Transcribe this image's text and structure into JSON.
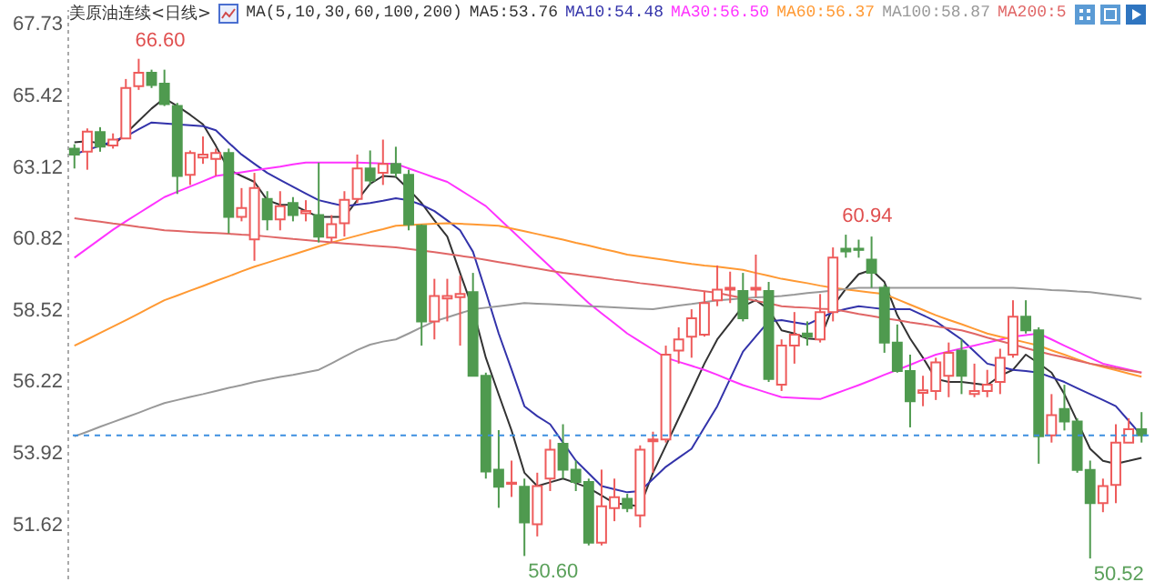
{
  "chart_data": {
    "type": "candlestick",
    "title": "美原油连续<日线>",
    "legend_title": "MA(5,10,30,60,100,200)",
    "legend": "top",
    "tick_labels": "y",
    "categories": [
      null,
      null,
      null,
      null,
      null,
      null,
      null,
      null,
      null,
      null,
      null,
      null,
      null,
      null,
      null,
      null,
      null,
      null,
      null,
      null,
      null,
      null,
      null,
      null,
      null,
      null,
      null,
      null,
      null,
      null,
      null,
      null,
      null,
      null,
      null,
      null,
      null,
      null,
      null,
      null,
      null,
      null,
      null,
      null,
      null,
      null,
      null,
      null,
      null,
      null,
      null,
      null,
      null,
      null,
      null,
      null,
      null,
      null,
      null,
      null,
      null,
      null,
      null,
      null,
      null,
      null,
      null,
      null,
      null,
      null,
      null,
      null,
      null,
      null,
      null,
      null,
      null,
      null,
      null,
      null,
      null,
      null,
      null,
      null
    ],
    "ylim": [
      49.88,
      68.2
    ],
    "yticks": [
      67.73,
      65.42,
      63.12,
      60.82,
      58.52,
      56.22,
      53.92,
      51.62
    ],
    "ohlc": [
      [
        63.71,
        63.85,
        63.07,
        63.52
      ],
      [
        63.61,
        64.36,
        63.03,
        64.26
      ],
      [
        64.24,
        64.4,
        63.61,
        63.77
      ],
      [
        63.81,
        64.2,
        63.71,
        64.0
      ],
      [
        64.04,
        65.95,
        64.04,
        65.66
      ],
      [
        65.72,
        66.6,
        65.6,
        66.15
      ],
      [
        66.15,
        66.25,
        65.66,
        65.76
      ],
      [
        65.8,
        66.25,
        65.08,
        65.14
      ],
      [
        65.08,
        65.18,
        62.25,
        62.83
      ],
      [
        62.87,
        63.65,
        62.54,
        63.57
      ],
      [
        63.42,
        64.1,
        63.22,
        63.52
      ],
      [
        63.38,
        63.71,
        62.83,
        63.57
      ],
      [
        63.57,
        63.71,
        60.98,
        61.51
      ],
      [
        61.51,
        62.44,
        61.37,
        61.8
      ],
      [
        60.79,
        62.93,
        60.1,
        62.44
      ],
      [
        62.09,
        62.34,
        61.08,
        61.43
      ],
      [
        61.43,
        62.34,
        61.08,
        61.86
      ],
      [
        61.96,
        62.15,
        61.37,
        61.57
      ],
      [
        61.63,
        62.05,
        61.37,
        61.7
      ],
      [
        61.57,
        63.26,
        60.69,
        60.88
      ],
      [
        60.85,
        61.57,
        60.69,
        61.28
      ],
      [
        61.31,
        62.34,
        60.88,
        62.06
      ],
      [
        62.09,
        63.52,
        61.96,
        63.07
      ],
      [
        63.07,
        63.65,
        62.54,
        62.68
      ],
      [
        62.93,
        64.0,
        62.54,
        63.22
      ],
      [
        63.22,
        63.77,
        62.8,
        62.93
      ],
      [
        62.87,
        63.03,
        61.08,
        61.27
      ],
      [
        61.23,
        61.27,
        57.37,
        58.15
      ],
      [
        58.15,
        59.52,
        57.57,
        58.97
      ],
      [
        58.89,
        59.52,
        58.15,
        58.97
      ],
      [
        58.93,
        59.62,
        57.37,
        59.03
      ],
      [
        59.09,
        59.71,
        56.4,
        56.4
      ],
      [
        56.4,
        56.5,
        53.09,
        53.32
      ],
      [
        53.38,
        54.65,
        52.15,
        52.83
      ],
      [
        52.92,
        53.67,
        52.5,
        52.96
      ],
      [
        52.83,
        53.09,
        50.6,
        51.68
      ],
      [
        51.62,
        53.28,
        51.23,
        52.85
      ],
      [
        53.09,
        54.35,
        52.69,
        54.02
      ],
      [
        54.21,
        54.84,
        53.09,
        53.38
      ],
      [
        53.38,
        53.67,
        52.69,
        52.98
      ],
      [
        52.98,
        53.09,
        50.94,
        51.03
      ],
      [
        51.03,
        53.38,
        50.94,
        52.2
      ],
      [
        52.14,
        53.09,
        51.72,
        52.49
      ],
      [
        52.44,
        52.6,
        52.01,
        52.14
      ],
      [
        51.91,
        54.16,
        51.52,
        54.02
      ],
      [
        54.29,
        54.6,
        53.28,
        54.35
      ],
      [
        54.35,
        57.37,
        54.25,
        57.08
      ],
      [
        57.21,
        57.96,
        56.79,
        57.57
      ],
      [
        57.66,
        58.54,
        56.98,
        58.25
      ],
      [
        57.72,
        59.13,
        57.66,
        58.74
      ],
      [
        58.83,
        59.95,
        58.64,
        59.17
      ],
      [
        59.17,
        59.75,
        58.74,
        59.23
      ],
      [
        59.13,
        59.71,
        58.15,
        58.25
      ],
      [
        59.17,
        60.3,
        58.93,
        59.23
      ],
      [
        59.13,
        59.42,
        56.2,
        56.3
      ],
      [
        56.11,
        57.57,
        55.91,
        57.37
      ],
      [
        57.37,
        58.45,
        56.79,
        57.72
      ],
      [
        57.76,
        58.15,
        57.37,
        57.66
      ],
      [
        57.57,
        59.03,
        57.47,
        58.45
      ],
      [
        58.45,
        60.53,
        58.15,
        60.2
      ],
      [
        60.49,
        60.94,
        60.2,
        60.4
      ],
      [
        60.49,
        60.78,
        60.2,
        60.45
      ],
      [
        60.14,
        60.88,
        59.23,
        59.71
      ],
      [
        59.23,
        59.33,
        57.14,
        57.47
      ],
      [
        57.47,
        58.05,
        56.5,
        56.55
      ],
      [
        56.55,
        57.08,
        54.74,
        55.58
      ],
      [
        55.85,
        56.4,
        55.42,
        55.93
      ],
      [
        55.91,
        56.98,
        55.62,
        56.83
      ],
      [
        56.4,
        57.47,
        55.71,
        57.14
      ],
      [
        57.21,
        57.57,
        55.81,
        56.4
      ],
      [
        55.81,
        56.79,
        55.71,
        55.91
      ],
      [
        55.91,
        56.59,
        55.71,
        56.11
      ],
      [
        56.2,
        57.27,
        55.81,
        56.98
      ],
      [
        57.08,
        58.83,
        56.98,
        58.3
      ],
      [
        58.3,
        58.83,
        57.76,
        57.86
      ],
      [
        57.86,
        57.96,
        53.57,
        54.45
      ],
      [
        54.48,
        55.81,
        54.25,
        55.13
      ],
      [
        55.33,
        56.11,
        54.64,
        54.93
      ],
      [
        54.93,
        55.03,
        53.28,
        53.37
      ],
      [
        53.37,
        53.67,
        50.52,
        52.3
      ],
      [
        52.3,
        53.09,
        52.01,
        52.85
      ],
      [
        52.89,
        54.84,
        52.3,
        54.25
      ],
      [
        54.25,
        55.03,
        54.25,
        54.68
      ],
      [
        54.68,
        55.23,
        54.25,
        54.48
      ]
    ],
    "series": [
      {
        "name": "MA5:53.76",
        "type": "line",
        "color": "#333333",
        "values": [
          63.91,
          63.95,
          63.88,
          63.81,
          64.2,
          64.6,
          65.0,
          65.33,
          65.08,
          64.8,
          64.49,
          63.8,
          63.03,
          62.83,
          62.64,
          62.05,
          61.9,
          61.9,
          61.7,
          61.51,
          61.51,
          61.51,
          62.05,
          62.58,
          62.83,
          62.8,
          62.4,
          61.96,
          61.4,
          60.88,
          59.7,
          58.54,
          56.98,
          55.8,
          54.64,
          53.28,
          52.85,
          52.97,
          53.09,
          52.95,
          52.79,
          52.55,
          52.3,
          52.25,
          52.2,
          53.28,
          54.15,
          55.03,
          55.9,
          56.79,
          57.57,
          58.1,
          58.64,
          58.83,
          58.54,
          57.86,
          57.76,
          57.6,
          57.57,
          58.64,
          59.2,
          59.67,
          59.81,
          59.42,
          58.35,
          57.6,
          56.98,
          56.3,
          56.2,
          56.2,
          56.15,
          56.1,
          56.4,
          56.59,
          57.08,
          56.8,
          56.5,
          55.81,
          54.93,
          54.05,
          53.66,
          53.57,
          53.66,
          53.76
        ]
      },
      {
        "name": "MA10:54.48",
        "type": "line",
        "color": "#3333aa",
        "values": [
          63.52,
          63.67,
          63.8,
          63.95,
          64.1,
          64.33,
          64.55,
          64.52,
          64.49,
          64.46,
          64.43,
          64.3,
          63.9,
          63.52,
          63.22,
          62.93,
          62.7,
          62.48,
          62.26,
          62.05,
          61.95,
          61.86,
          61.91,
          61.96,
          62.03,
          62.11,
          62.05,
          61.9,
          61.7,
          61.4,
          61.08,
          60.39,
          59.1,
          57.76,
          56.6,
          55.42,
          55.1,
          54.84,
          54.25,
          53.67,
          53.26,
          52.85,
          52.75,
          52.65,
          52.69,
          53.08,
          53.47,
          53.76,
          54.05,
          54.74,
          55.42,
          56.3,
          57.18,
          57.67,
          58.15,
          58.19,
          58.12,
          58.05,
          58.25,
          58.45,
          58.55,
          58.64,
          58.59,
          58.54,
          58.54,
          58.54,
          58.35,
          58.15,
          57.86,
          57.57,
          57.18,
          56.79,
          56.69,
          56.59,
          56.55,
          56.5,
          56.35,
          56.2,
          56.0,
          55.81,
          55.62,
          55.42,
          54.95,
          54.48
        ]
      },
      {
        "name": "MA30:56.50",
        "type": "line",
        "color": "#ff33ff",
        "values": [
          60.2,
          60.5,
          60.8,
          61.1,
          61.37,
          61.63,
          61.89,
          62.15,
          62.32,
          62.49,
          62.66,
          62.83,
          62.89,
          62.95,
          63.01,
          63.07,
          63.13,
          63.2,
          63.26,
          63.26,
          63.26,
          63.26,
          63.26,
          63.25,
          63.23,
          63.22,
          63.07,
          62.93,
          62.78,
          62.64,
          62.38,
          62.12,
          61.86,
          61.47,
          61.08,
          60.69,
          60.3,
          59.91,
          59.52,
          59.13,
          58.74,
          58.41,
          58.09,
          57.76,
          57.5,
          57.24,
          56.98,
          56.85,
          56.72,
          56.59,
          56.43,
          56.26,
          56.1,
          55.97,
          55.84,
          55.71,
          55.69,
          55.67,
          55.65,
          55.8,
          55.95,
          56.1,
          56.26,
          56.43,
          56.59,
          56.75,
          56.92,
          57.08,
          57.18,
          57.28,
          57.37,
          57.47,
          57.56,
          57.66,
          57.71,
          57.76,
          57.57,
          57.37,
          57.18,
          56.98,
          56.79,
          56.69,
          56.6,
          56.5
        ]
      },
      {
        "name": "MA60:56.37",
        "type": "line",
        "color": "#ff9933",
        "values": [
          57.37,
          57.57,
          57.78,
          57.98,
          58.19,
          58.4,
          58.62,
          58.83,
          58.98,
          59.14,
          59.29,
          59.45,
          59.6,
          59.76,
          59.91,
          60.04,
          60.17,
          60.3,
          60.43,
          60.56,
          60.69,
          60.8,
          60.91,
          61.02,
          61.12,
          61.23,
          61.25,
          61.27,
          61.29,
          61.31,
          61.29,
          61.27,
          61.25,
          61.23,
          61.14,
          61.05,
          60.96,
          60.87,
          60.78,
          60.68,
          60.59,
          60.49,
          60.4,
          60.3,
          60.24,
          60.18,
          60.12,
          60.06,
          60.0,
          59.95,
          59.91,
          59.86,
          59.81,
          59.71,
          59.62,
          59.52,
          59.45,
          59.38,
          59.3,
          59.23,
          59.18,
          59.13,
          59.08,
          59.03,
          58.86,
          58.69,
          58.52,
          58.35,
          58.2,
          58.06,
          57.91,
          57.76,
          57.66,
          57.57,
          57.47,
          57.37,
          57.22,
          57.08,
          56.93,
          56.79,
          56.68,
          56.58,
          56.47,
          56.37
        ]
      },
      {
        "name": "MA100:58.87",
        "type": "line",
        "color": "#999999",
        "values": [
          54.45,
          54.6,
          54.76,
          54.91,
          55.06,
          55.21,
          55.37,
          55.52,
          55.62,
          55.72,
          55.81,
          55.91,
          56.01,
          56.1,
          56.2,
          56.28,
          56.36,
          56.43,
          56.51,
          56.59,
          56.8,
          57.02,
          57.23,
          57.4,
          57.5,
          57.57,
          57.76,
          57.96,
          58.15,
          58.28,
          58.41,
          58.54,
          58.59,
          58.64,
          58.69,
          58.74,
          58.72,
          58.7,
          58.68,
          58.66,
          58.64,
          58.62,
          58.6,
          58.58,
          58.56,
          58.54,
          58.6,
          58.66,
          58.71,
          58.77,
          58.83,
          58.86,
          58.89,
          58.92,
          58.94,
          58.97,
          59.01,
          59.06,
          59.1,
          59.14,
          59.19,
          59.23,
          59.23,
          59.23,
          59.23,
          59.23,
          59.23,
          59.23,
          59.23,
          59.23,
          59.23,
          59.23,
          59.23,
          59.23,
          59.21,
          59.19,
          59.16,
          59.14,
          59.11,
          59.09,
          59.04,
          58.99,
          58.94,
          58.87
        ]
      },
      {
        "name": "MA200:5",
        "type": "line",
        "color": "#e06666",
        "values": [
          61.47,
          61.41,
          61.36,
          61.3,
          61.25,
          61.19,
          61.14,
          61.08,
          61.06,
          61.03,
          61.01,
          60.99,
          60.97,
          60.94,
          60.92,
          60.88,
          60.84,
          60.8,
          60.77,
          60.73,
          60.69,
          60.66,
          60.63,
          60.59,
          60.56,
          60.53,
          60.48,
          60.43,
          60.38,
          60.32,
          60.26,
          60.2,
          60.13,
          60.06,
          59.99,
          59.92,
          59.85,
          59.78,
          59.71,
          59.66,
          59.6,
          59.55,
          59.49,
          59.44,
          59.38,
          59.33,
          59.28,
          59.23,
          59.17,
          59.12,
          59.07,
          58.98,
          58.9,
          58.81,
          58.73,
          58.64,
          58.61,
          58.59,
          58.56,
          58.54,
          58.47,
          58.39,
          58.32,
          58.25,
          58.19,
          58.12,
          58.06,
          57.99,
          57.93,
          57.86,
          57.75,
          57.63,
          57.52,
          57.41,
          57.29,
          57.18,
          57.08,
          56.99,
          56.89,
          56.79,
          56.72,
          56.64,
          56.57,
          56.5
        ]
      }
    ],
    "ref_lines": [
      {
        "axis": "y",
        "value": 54.48,
        "color": "#3d8fe0",
        "line_style": "dashed"
      }
    ],
    "annotations": [
      "66.60",
      "60.94",
      "50.60",
      "50.52"
    ]
  }
}
